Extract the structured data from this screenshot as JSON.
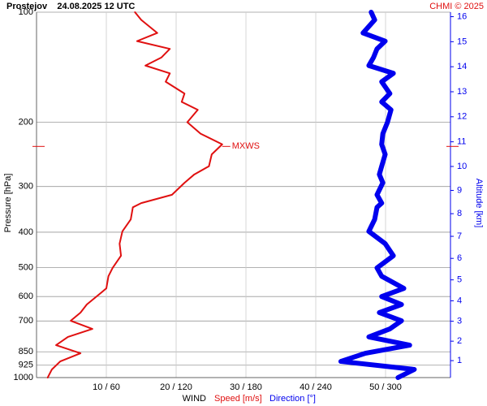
{
  "chart_data": {
    "type": "profile",
    "title": "Prostejov    24.08.2025 12 UTC",
    "credit": "CHMI © 2025",
    "ylabel": "Pressure [hPa]",
    "y2label": "Altitude [km]",
    "xlabel": "WIND",
    "ylog": true,
    "ylim": [
      1000,
      100
    ],
    "yticks": [
      100,
      200,
      300,
      400,
      500,
      600,
      700,
      850,
      925,
      1000
    ],
    "y2ticks": [
      1,
      2,
      3,
      4,
      5,
      6,
      7,
      8,
      9,
      10,
      11,
      12,
      13,
      14,
      15,
      16
    ],
    "xlim": [
      0,
      59.3
    ],
    "x2lim": [
      0,
      355
    ],
    "xticks": [
      {
        "value": 10,
        "label": "10 / 60"
      },
      {
        "value": 20,
        "label": "20 / 120"
      },
      {
        "value": 30,
        "label": "30 / 180"
      },
      {
        "value": 40,
        "label": "40 / 240"
      },
      {
        "value": 50,
        "label": "50 / 300"
      }
    ],
    "grid": true,
    "pressure": [
      100,
      105,
      114,
      120,
      126,
      133,
      140,
      147,
      155,
      167,
      176,
      185,
      200,
      215,
      230,
      245,
      264,
      278,
      293,
      316,
      333,
      342,
      369,
      398,
      430,
      464,
      501,
      528,
      570,
      600,
      631,
      664,
      699,
      736,
      774,
      815,
      858,
      903,
      950,
      1000
    ],
    "series": [
      {
        "name": "Speed [m/s]",
        "color": "#e01010",
        "values": [
          14.1,
          15.0,
          17.3,
          14.4,
          19.1,
          17.9,
          15.6,
          19.1,
          18.5,
          21.2,
          20.8,
          23.1,
          21.6,
          23.5,
          26.6,
          25.1,
          24.7,
          22.6,
          21.2,
          19.4,
          15.0,
          13.8,
          13.5,
          12.3,
          11.9,
          12.1,
          10.9,
          10.3,
          10.0,
          8.6,
          7.2,
          6.3,
          4.9,
          8.0,
          4.5,
          2.8,
          6.3,
          3.4,
          2.2,
          1.6
        ]
      },
      {
        "name": "Direction [°]",
        "color": "#0000ee",
        "axis": "x2",
        "values": [
          287,
          290,
          280,
          299,
          292,
          289,
          285,
          306,
          296,
          303,
          296,
          304,
          301,
          297,
          296,
          299,
          296,
          294,
          297,
          292,
          296,
          292,
          290,
          285,
          299,
          306,
          292,
          296,
          315,
          296,
          313,
          294,
          313,
          303,
          285,
          320,
          282,
          261,
          324,
          310
        ]
      }
    ],
    "annotation": {
      "text": "MXWS",
      "pressure": 233,
      "speed": 26.6
    }
  }
}
